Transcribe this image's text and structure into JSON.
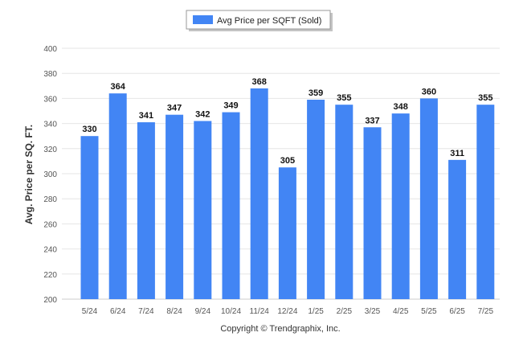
{
  "chart_data": {
    "type": "bar",
    "categories": [
      "5/24",
      "6/24",
      "7/24",
      "8/24",
      "9/24",
      "10/24",
      "11/24",
      "12/24",
      "1/25",
      "2/25",
      "3/25",
      "4/25",
      "5/25",
      "6/25",
      "7/25"
    ],
    "series": [
      {
        "name": "Avg Price per SQFT (Sold)",
        "color": "#4285F4",
        "values": [
          330,
          364,
          341,
          347,
          342,
          349,
          368,
          305,
          359,
          355,
          337,
          348,
          360,
          311,
          355
        ]
      }
    ],
    "ylabel": "Avg. Price per SQ. FT.",
    "ylim": [
      200,
      400
    ],
    "yticks": [
      200,
      220,
      240,
      260,
      280,
      300,
      320,
      340,
      360,
      380,
      400
    ],
    "grid": true,
    "legend_position": "top-center",
    "data_labels": true
  },
  "footer": {
    "copyright": "Copyright © Trendgraphix, Inc."
  }
}
